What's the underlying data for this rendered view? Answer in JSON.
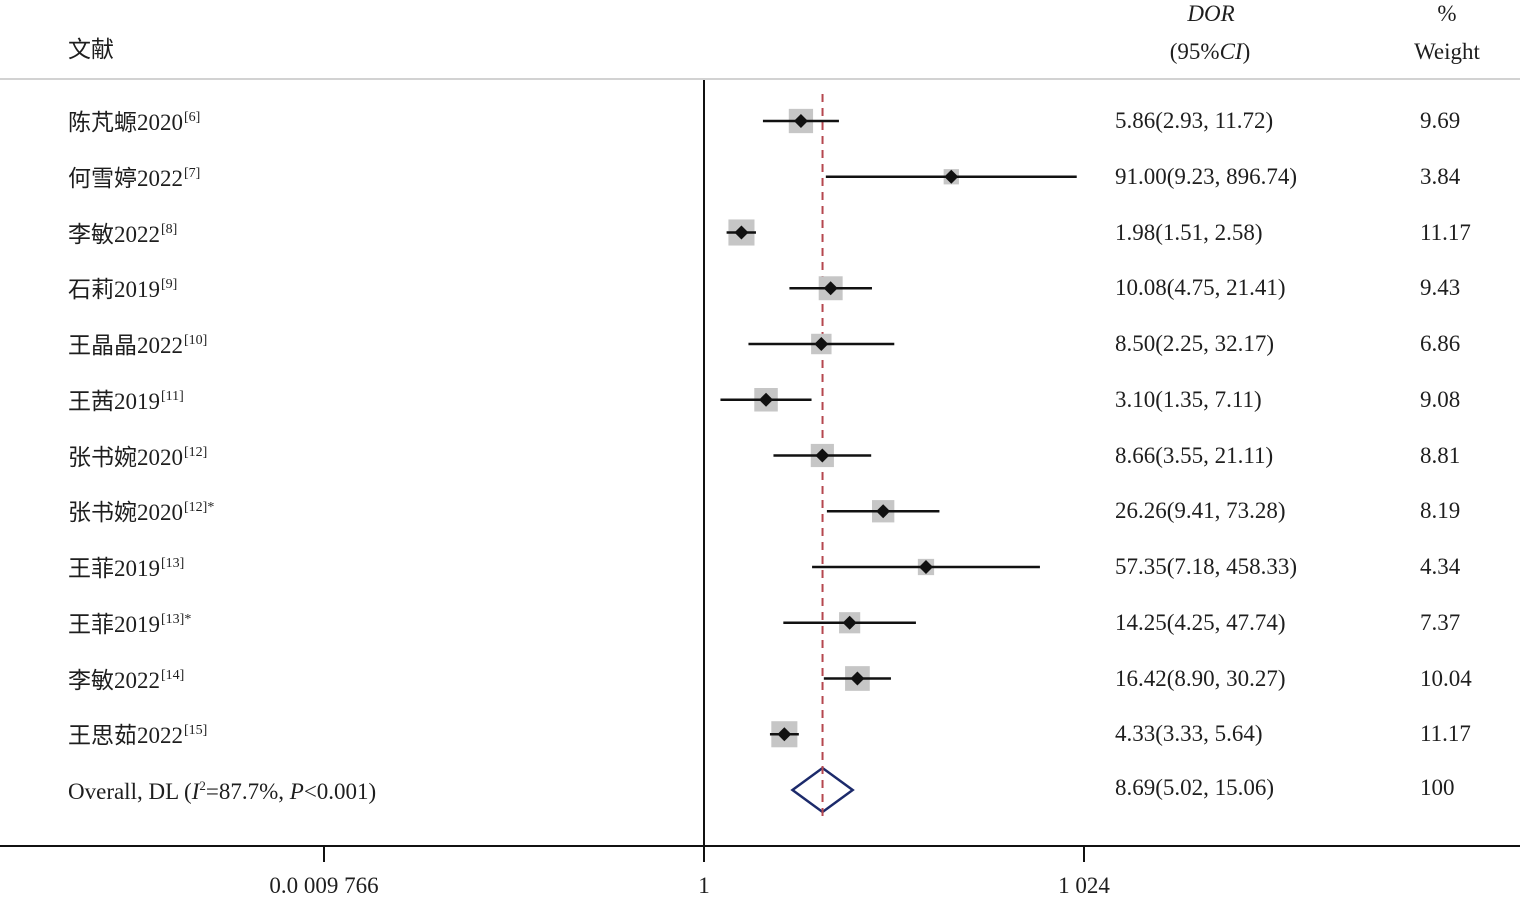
{
  "header": {
    "study_label": "文献",
    "dor_label": "DOR",
    "ci_open": "(95%",
    "ci_italic": "CI",
    "ci_close": ")",
    "weight_percent": "%",
    "weight_label": "Weight"
  },
  "chart_data": {
    "type": "scatter",
    "xscale": "log",
    "null_value": 1,
    "reference_line": 8.69,
    "xticks": [
      0.0009766,
      1,
      1024
    ],
    "xtick_labels": [
      "0.0 009 766",
      "1",
      "1 024"
    ],
    "studies": [
      {
        "name": "陈芃螈2020",
        "ref": "[6]",
        "dor": 5.86,
        "ci": [
          2.93,
          11.72
        ],
        "weight": 9.69,
        "estimate_text": "5.86(2.93, 11.72)",
        "weight_text": "9.69"
      },
      {
        "name": "何雪婷2022",
        "ref": "[7]",
        "dor": 91.0,
        "ci": [
          9.23,
          896.74
        ],
        "weight": 3.84,
        "estimate_text": "91.00(9.23, 896.74)",
        "weight_text": "3.84"
      },
      {
        "name": "李敏2022",
        "ref": "[8]",
        "dor": 1.98,
        "ci": [
          1.51,
          2.58
        ],
        "weight": 11.17,
        "estimate_text": "1.98(1.51, 2.58)",
        "weight_text": "11.17"
      },
      {
        "name": "石莉2019",
        "ref": "[9]",
        "dor": 10.08,
        "ci": [
          4.75,
          21.41
        ],
        "weight": 9.43,
        "estimate_text": "10.08(4.75, 21.41)",
        "weight_text": "9.43"
      },
      {
        "name": "王晶晶2022",
        "ref": "[10]",
        "dor": 8.5,
        "ci": [
          2.25,
          32.17
        ],
        "weight": 6.86,
        "estimate_text": "8.50(2.25, 32.17)",
        "weight_text": "6.86"
      },
      {
        "name": "王茜2019",
        "ref": "[11]",
        "dor": 3.1,
        "ci": [
          1.35,
          7.11
        ],
        "weight": 9.08,
        "estimate_text": "3.10(1.35, 7.11)",
        "weight_text": "9.08"
      },
      {
        "name": "张书婉2020",
        "ref": "[12]",
        "dor": 8.66,
        "ci": [
          3.55,
          21.11
        ],
        "weight": 8.81,
        "estimate_text": "8.66(3.55, 21.11)",
        "weight_text": "8.81"
      },
      {
        "name": "张书婉2020",
        "ref": "[12]*",
        "dor": 26.26,
        "ci": [
          9.41,
          73.28
        ],
        "weight": 8.19,
        "estimate_text": "26.26(9.41, 73.28)",
        "weight_text": "8.19"
      },
      {
        "name": "王菲2019",
        "ref": "[13]",
        "dor": 57.35,
        "ci": [
          7.18,
          458.33
        ],
        "weight": 4.34,
        "estimate_text": "57.35(7.18, 458.33)",
        "weight_text": "4.34"
      },
      {
        "name": "王菲2019",
        "ref": "[13]*",
        "dor": 14.25,
        "ci": [
          4.25,
          47.74
        ],
        "weight": 7.37,
        "estimate_text": "14.25(4.25, 47.74)",
        "weight_text": "7.37"
      },
      {
        "name": "李敏2022",
        "ref": "[14]",
        "dor": 16.42,
        "ci": [
          8.9,
          30.27
        ],
        "weight": 10.04,
        "estimate_text": "16.42(8.90, 30.27)",
        "weight_text": "10.04"
      },
      {
        "name": "王思茹2022",
        "ref": "[15]",
        "dor": 4.33,
        "ci": [
          3.33,
          5.64
        ],
        "weight": 11.17,
        "estimate_text": "4.33(3.33, 5.64)",
        "weight_text": "11.17"
      }
    ],
    "overall": {
      "label_prefix": "Overall, DL (",
      "label_i": "I",
      "label_sup": "2",
      "label_mid": "=87.7%, ",
      "label_p": "P",
      "label_suffix": "<0.001)",
      "dor": 8.69,
      "ci": [
        5.02,
        15.06
      ],
      "weight": 100,
      "estimate_text": "8.69(5.02, 15.06)",
      "weight_text": "100"
    },
    "colors": {
      "square": "#c6c6c6",
      "marker": "#111111",
      "ci": "#111111",
      "diamond": "#1c2a6b",
      "reference_line": "#b5474f",
      "separator": "#d2d2d2",
      "axis": "#111111"
    }
  }
}
